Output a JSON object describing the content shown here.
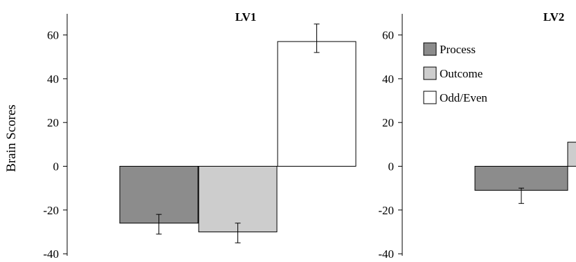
{
  "chart_data": [
    {
      "type": "bar",
      "title": "LV1",
      "ylabel": "Brain Scores",
      "ylim": [
        -40,
        70
      ],
      "yticks": [
        60,
        40,
        20,
        0,
        -20,
        -40
      ],
      "bars": [
        {
          "series": "Process",
          "value": -26,
          "err_low": -31,
          "err_high": -22
        },
        {
          "series": "Outcome",
          "value": -30,
          "err_low": -35,
          "err_high": -26
        },
        {
          "series": "Odd/Even",
          "value": 57,
          "err_low": 52,
          "err_high": 65
        }
      ]
    },
    {
      "type": "bar",
      "title": "LV2",
      "ylim": [
        -40,
        70
      ],
      "yticks": [
        60,
        40,
        20,
        0,
        -20,
        -40
      ],
      "legend_position": "top-left",
      "bars": [
        {
          "series": "Process",
          "value": -11,
          "err_low": -17,
          "err_high": -10
        },
        {
          "series": "Outcome",
          "value": 11
        }
      ]
    }
  ],
  "legend": [
    {
      "label": "Process",
      "color": "#8c8c8c"
    },
    {
      "label": "Outcome",
      "color": "#cdcdcd"
    },
    {
      "label": "Odd/Even",
      "color": "#ffffff"
    }
  ]
}
